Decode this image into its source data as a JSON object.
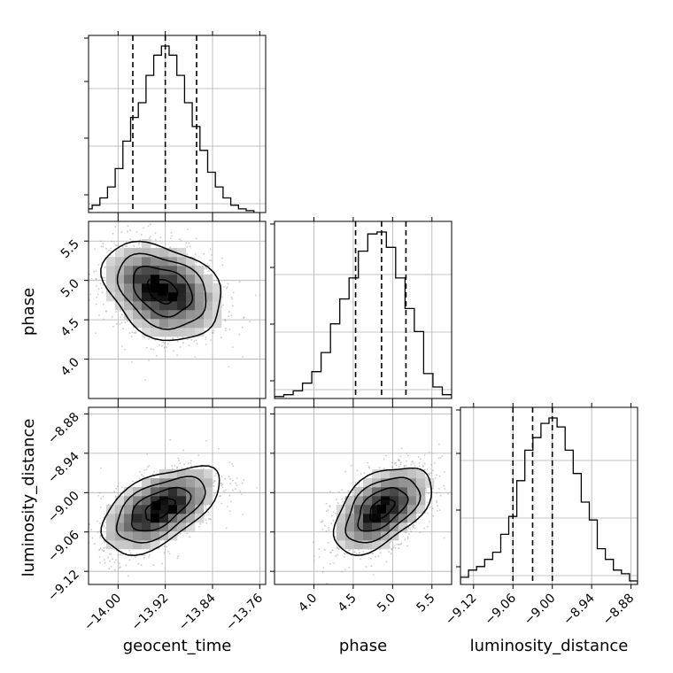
{
  "chart_data": {
    "type": "corner",
    "parameters": [
      {
        "name": "geocent_time",
        "label": "geocent_time",
        "range": [
          -14.05,
          -13.75
        ],
        "ticks": [
          -14.0,
          -13.92,
          -13.84,
          -13.76
        ],
        "tick_labels": [
          "−14.00",
          "−13.92",
          "−13.84",
          "−13.76"
        ],
        "quantiles": [
          -13.975,
          -13.92,
          -13.867
        ],
        "histogram": {
          "bin_edges_range": [
            -14.07,
            -13.77
          ],
          "counts": [
            1,
            2,
            4,
            8,
            14,
            24,
            39,
            52,
            60,
            75,
            86,
            91,
            86,
            75,
            60,
            47,
            34,
            22,
            14,
            8,
            4,
            2,
            1
          ]
        }
      },
      {
        "name": "phase",
        "label": "phase",
        "range": [
          3.5,
          5.75
        ],
        "ticks": [
          4.0,
          4.5,
          5.0,
          5.5
        ],
        "tick_labels": [
          "4.0",
          "4.5",
          "5.0",
          "5.5"
        ],
        "quantiles": [
          4.53,
          4.86,
          5.17
        ],
        "histogram": {
          "bin_edges_range": [
            3.5,
            5.75
          ],
          "counts": [
            1,
            2,
            4,
            8,
            14,
            24,
            39,
            52,
            63,
            77,
            86,
            87,
            79,
            63,
            47,
            35,
            13,
            6,
            2
          ]
        }
      },
      {
        "name": "luminosity_distance",
        "label": "luminosity_distance",
        "range": [
          -9.14,
          -8.87
        ],
        "ticks": [
          -9.12,
          -9.06,
          -9.0,
          -8.94,
          -8.88
        ],
        "tick_labels": [
          "−9.12",
          "−9.06",
          "−9.00",
          "−8.94",
          "−8.88"
        ],
        "quantiles": [
          -9.06,
          -9.03,
          -9.0
        ],
        "histogram": {
          "bin_edges_range": [
            -9.14,
            -8.87
          ],
          "counts": [
            4,
            8,
            10,
            14,
            18,
            28,
            38,
            58,
            75,
            82,
            90,
            93,
            88,
            75,
            62,
            46,
            36,
            20,
            14,
            8,
            6,
            2
          ]
        }
      }
    ],
    "pairs": [
      {
        "x": "geocent_time",
        "y": "phase",
        "mean": [
          -13.925,
          4.87
        ],
        "sd": [
          0.05,
          0.31
        ],
        "correlation": -0.3,
        "peak": [
          -13.925,
          4.86
        ]
      },
      {
        "x": "geocent_time",
        "y": "luminosity_distance",
        "mean": [
          -13.93,
          -9.025
        ],
        "sd": [
          0.05,
          0.033
        ],
        "correlation": 0.55,
        "peak": [
          -13.935,
          -9.02
        ]
      },
      {
        "x": "phase",
        "y": "luminosity_distance",
        "mean": [
          4.86,
          -9.025
        ],
        "sd": [
          0.31,
          0.033
        ],
        "correlation": 0.5,
        "peak": [
          4.86,
          -9.025
        ]
      }
    ],
    "grid": true,
    "colors": {
      "line": "#000000",
      "scatter": "#9e9e9e",
      "grid": "#b0b0b0"
    }
  }
}
